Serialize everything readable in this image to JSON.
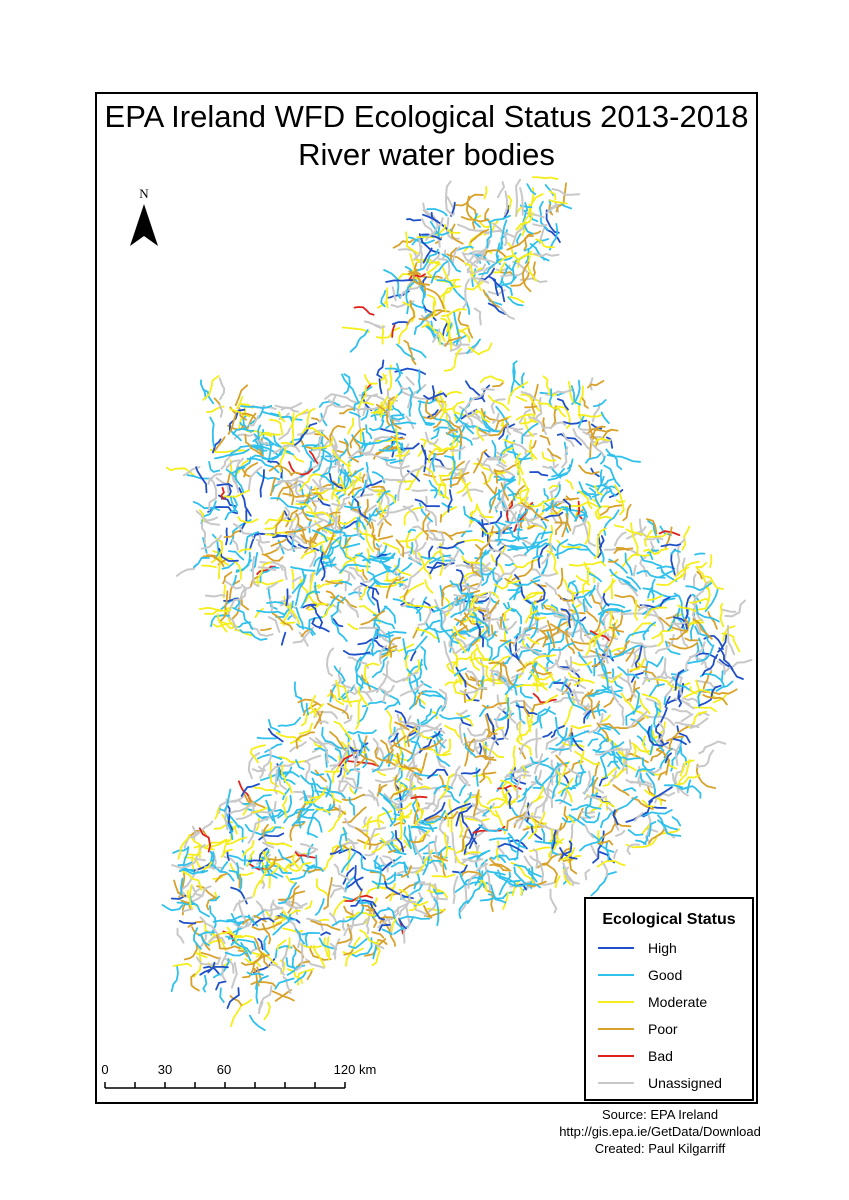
{
  "title": {
    "line1": "EPA Ireland WFD Ecological Status 2013-2018",
    "line2": "River water bodies"
  },
  "north_arrow": {
    "label": "N"
  },
  "legend": {
    "title": "Ecological Status",
    "items": [
      {
        "label": "High",
        "color": "#1f4fc8"
      },
      {
        "label": "Good",
        "color": "#2fc0ec"
      },
      {
        "label": "Moderate",
        "color": "#f5ee1a"
      },
      {
        "label": "Poor",
        "color": "#d8a12a"
      },
      {
        "label": "Bad",
        "color": "#e0221c"
      },
      {
        "label": "Unassigned",
        "color": "#c8c8c8"
      }
    ]
  },
  "scale_bar": {
    "labels": [
      "0",
      "30",
      "60",
      "120 km"
    ]
  },
  "credits": {
    "source": "Source: EPA Ireland",
    "url": "http://gis.epa.ie/GetData/Download",
    "created": "Created: Paul Kilgarriff"
  }
}
